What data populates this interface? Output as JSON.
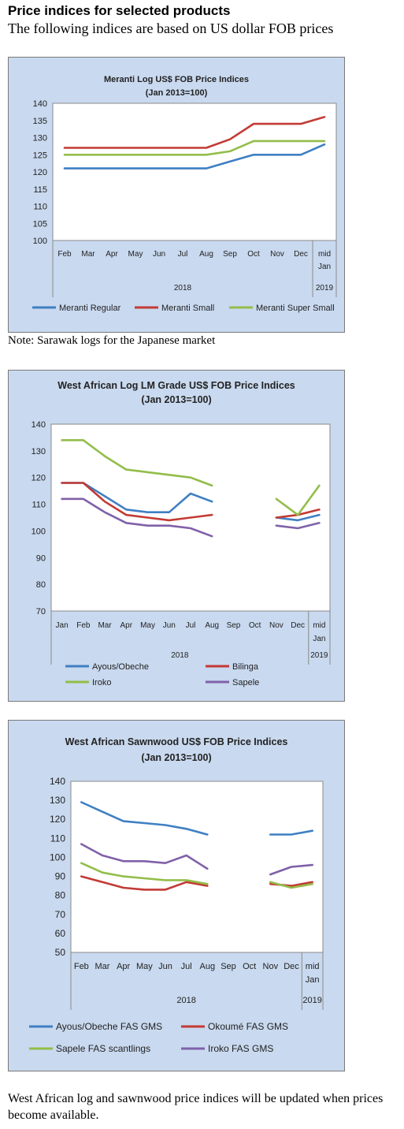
{
  "page": {
    "title": "Price indices for selected products",
    "subtitle": "The following indices are based on US dollar FOB prices",
    "footer": "West African log and sawnwood price indices will be updated when prices become available."
  },
  "chart_data": [
    {
      "type": "line",
      "title_lines": [
        "Meranti Log US$ FOB Price Indices",
        "(Jan 2013=100)"
      ],
      "categories": [
        "Feb",
        "Mar",
        "Apr",
        "May",
        "Jun",
        "Jul",
        "Aug",
        "Sep",
        "Oct",
        "Nov",
        "Dec",
        "mid Jan"
      ],
      "year_labels": [
        "2018",
        "2019"
      ],
      "ylim": [
        100,
        140
      ],
      "yticks": [
        100,
        105,
        110,
        115,
        120,
        125,
        130,
        135,
        140
      ],
      "legend_placement": "bottom",
      "grid": false,
      "note": "Note: Sarawak logs for the Japanese market",
      "series": [
        {
          "name": "Meranti Regular",
          "color": "#3f7fc3",
          "values": [
            121,
            121,
            121,
            121,
            121,
            121,
            121,
            123,
            125,
            125,
            125,
            128
          ]
        },
        {
          "name": "Meranti Small",
          "color": "#c23b35",
          "values": [
            127,
            127,
            127,
            127,
            127,
            127,
            127,
            129.5,
            134,
            134,
            134,
            136
          ]
        },
        {
          "name": "Meranti Super Small",
          "color": "#93bd4a",
          "values": [
            125,
            125,
            125,
            125,
            125,
            125,
            125,
            126,
            129,
            129,
            129,
            129
          ]
        }
      ]
    },
    {
      "type": "line",
      "title_lines": [
        "West African Log LM Grade US$ FOB Price Indices",
        "(Jan 2013=100)"
      ],
      "categories": [
        "Jan",
        "Feb",
        "Mar",
        "Apr",
        "May",
        "Jun",
        "Jul",
        "Aug",
        "Sep",
        "Oct",
        "Nov",
        "Dec",
        "mid Jan"
      ],
      "year_labels": [
        "2018",
        "2019"
      ],
      "ylim": [
        70,
        140
      ],
      "yticks": [
        70,
        80,
        90,
        100,
        110,
        120,
        130,
        140
      ],
      "legend_placement": "bottom",
      "grid": false,
      "series": [
        {
          "name": "Ayous/Obeche",
          "color": "#3f7fc3",
          "values": [
            118,
            118,
            113,
            108,
            107,
            107,
            114,
            111,
            null,
            null,
            105,
            104,
            106
          ]
        },
        {
          "name": "Bilinga",
          "color": "#c23b35",
          "values": [
            118,
            118,
            111,
            106,
            105,
            104,
            105,
            106,
            null,
            null,
            105,
            106,
            108
          ]
        },
        {
          "name": "Iroko",
          "color": "#93bd4a",
          "values": [
            134,
            134,
            128,
            123,
            122,
            121,
            120,
            117,
            null,
            null,
            112,
            106,
            117
          ]
        },
        {
          "name": "Sapele",
          "color": "#8061a8",
          "values": [
            112,
            112,
            107,
            103,
            102,
            102,
            101,
            98,
            null,
            null,
            102,
            101,
            103
          ]
        }
      ]
    },
    {
      "type": "line",
      "title_lines": [
        "West African Sawnwood US$ FOB Price Indices",
        "(Jan 2013=100)"
      ],
      "categories": [
        "Feb",
        "Mar",
        "Apr",
        "May",
        "Jun",
        "Jul",
        "Aug",
        "Sep",
        "Oct",
        "Nov",
        "Dec",
        "mid Jan"
      ],
      "year_labels": [
        "2018",
        "2019"
      ],
      "ylim": [
        50,
        140
      ],
      "yticks": [
        50,
        60,
        70,
        80,
        90,
        100,
        110,
        120,
        130,
        140
      ],
      "legend_placement": "bottom",
      "grid": false,
      "series": [
        {
          "name": "Ayous/Obeche  FAS GMS",
          "color": "#3f7fc3",
          "values": [
            129,
            124,
            119,
            118,
            117,
            115,
            112,
            null,
            null,
            112,
            112,
            114
          ]
        },
        {
          "name": "Okoumé  FAS GMS",
          "color": "#c23b35",
          "values": [
            90,
            87,
            84,
            83,
            83,
            87,
            85,
            null,
            null,
            86,
            85,
            87
          ]
        },
        {
          "name": "Sapele FAS scantlings",
          "color": "#93bd4a",
          "values": [
            97,
            92,
            90,
            89,
            88,
            88,
            86,
            null,
            null,
            87,
            84,
            86
          ]
        },
        {
          "name": "Iroko FAS GMS",
          "color": "#8061a8",
          "values": [
            107,
            101,
            98,
            98,
            97,
            101,
            94,
            null,
            null,
            91,
            95,
            96
          ]
        }
      ]
    }
  ]
}
